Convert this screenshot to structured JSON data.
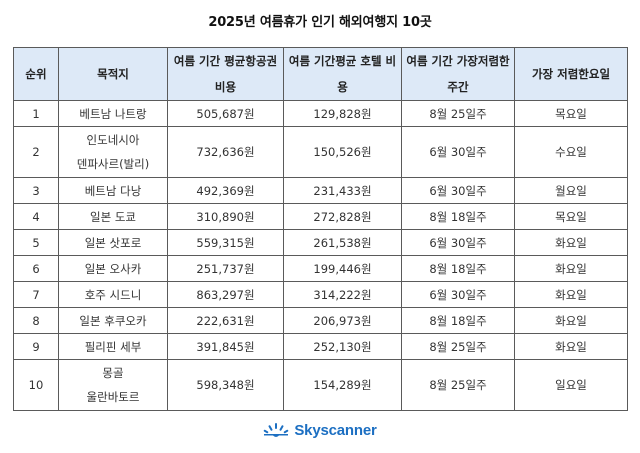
{
  "title": "2025년 여름휴가 인기 해외여행지 10곳",
  "table": {
    "headers": [
      {
        "line1": "순위",
        "line2": ""
      },
      {
        "line1": "목적지",
        "line2": ""
      },
      {
        "line1": "여름 기간 평균",
        "line2": "항공권 비용"
      },
      {
        "line1": "여름 기간",
        "line2": "평균 호텔 비용"
      },
      {
        "line1": "여름 기간 가장",
        "line2": "저렴한 주간"
      },
      {
        "line1": "가장 저렴한",
        "line2": "요일"
      }
    ],
    "rows": [
      {
        "rank": "1",
        "dest1": "베트남 나트랑",
        "dest2": "",
        "flight": "505,687원",
        "hotel": "129,828원",
        "week": "8월 25일주",
        "day": "목요일"
      },
      {
        "rank": "2",
        "dest1": "인도네시아",
        "dest2": "덴파사르(발리)",
        "flight": "732,636원",
        "hotel": "150,526원",
        "week": "6월 30일주",
        "day": "수요일"
      },
      {
        "rank": "3",
        "dest1": "베트남 다낭",
        "dest2": "",
        "flight": "492,369원",
        "hotel": "231,433원",
        "week": "6월 30일주",
        "day": "월요일"
      },
      {
        "rank": "4",
        "dest1": "일본 도쿄",
        "dest2": "",
        "flight": "310,890원",
        "hotel": "272,828원",
        "week": "8월 18일주",
        "day": "목요일"
      },
      {
        "rank": "5",
        "dest1": "일본 삿포로",
        "dest2": "",
        "flight": "559,315원",
        "hotel": "261,538원",
        "week": "6월 30일주",
        "day": "화요일"
      },
      {
        "rank": "6",
        "dest1": "일본 오사카",
        "dest2": "",
        "flight": "251,737원",
        "hotel": "199,446원",
        "week": "8월 18일주",
        "day": "화요일"
      },
      {
        "rank": "7",
        "dest1": "호주 시드니",
        "dest2": "",
        "flight": "863,297원",
        "hotel": "314,222원",
        "week": "6월 30일주",
        "day": "화요일"
      },
      {
        "rank": "8",
        "dest1": "일본 후쿠오카",
        "dest2": "",
        "flight": "222,631원",
        "hotel": "206,973원",
        "week": "8월 18일주",
        "day": "화요일"
      },
      {
        "rank": "9",
        "dest1": "필리핀 세부",
        "dest2": "",
        "flight": "391,845원",
        "hotel": "252,130원",
        "week": "8월 25일주",
        "day": "화요일"
      },
      {
        "rank": "10",
        "dest1": "몽골",
        "dest2": "울란바토르",
        "flight": "598,348원",
        "hotel": "154,289원",
        "week": "8월 25일주",
        "day": "일요일"
      }
    ]
  },
  "logo": {
    "icon": "sunrise-icon",
    "text": "Skyscanner",
    "color": "#1c6fc2"
  },
  "colors": {
    "header_bg": "#dde9f7",
    "border": "#5a5a5a"
  }
}
